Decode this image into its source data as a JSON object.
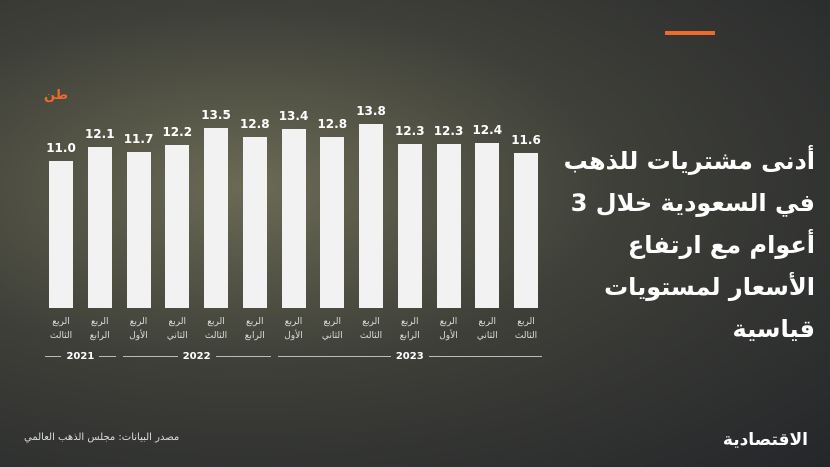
{
  "chart_data": {
    "type": "bar",
    "title": "أدنى مشتريات للذهب في السعودية خلال 3 أعوام مع ارتفاع الأسعار لمستويات قياسية",
    "unit": "طن",
    "categories": [
      "الربع الثالث",
      "الربع الرابع",
      "الربع الأول",
      "الربع الثاني",
      "الربع الثالث",
      "الربع الرابع",
      "الربع الأول",
      "الربع الثاني",
      "الربع الثالث",
      "الربع الرابع",
      "الربع الأول",
      "الربع الثاني",
      "الربع الثالث"
    ],
    "years": [
      "2021",
      "2021",
      "2022",
      "2022",
      "2022",
      "2022",
      "2023",
      "2023",
      "2023",
      "2023",
      "2023",
      "2023",
      "2023"
    ],
    "values": [
      11.0,
      12.1,
      11.7,
      12.2,
      13.5,
      12.8,
      13.4,
      12.8,
      13.8,
      12.3,
      12.3,
      12.4,
      11.6
    ],
    "value_labels": [
      "11.0",
      "12.1",
      "11.7",
      "12.2",
      "13.5",
      "12.8",
      "13.4",
      "12.8",
      "13.8",
      "12.3",
      "12.3",
      "12.4",
      "11.6"
    ],
    "color": "#f2f2f2",
    "ylim": [
      0,
      15
    ],
    "source": "مصدر البيانات: مجلس الذهب العالمي",
    "logo": "الاقتصادية"
  }
}
